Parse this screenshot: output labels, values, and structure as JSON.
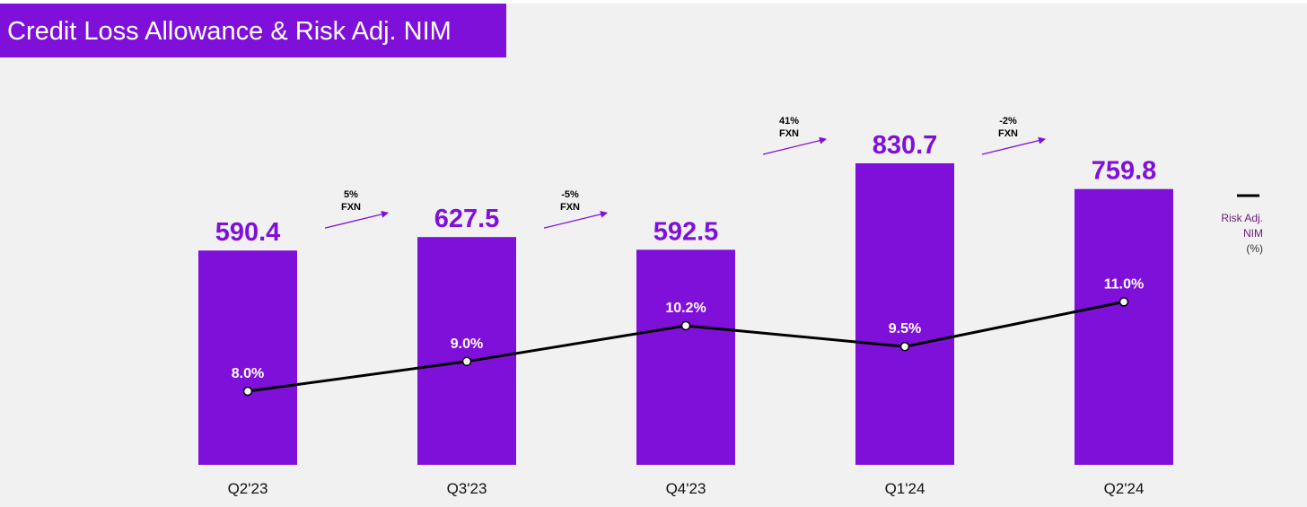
{
  "title": "Credit Loss Allowance & Risk Adj. NIM",
  "colors": {
    "bar": "#7f10d9",
    "line": "#000000",
    "title_bg": "#7f10d9",
    "background": "#f1f1f1"
  },
  "chart_data": {
    "type": "bar",
    "categories": [
      "Q2'23",
      "Q3'23",
      "Q4'23",
      "Q1'24",
      "Q2'24"
    ],
    "series": [
      {
        "values": [
          590.4,
          627.5,
          592.5,
          830.7,
          759.8
        ]
      },
      {
        "name": "Risk Adj. NIM (%)",
        "type": "line",
        "values": [
          8.0,
          9.0,
          10.2,
          9.5,
          11.0
        ]
      }
    ],
    "bar_labels": [
      "590.4",
      "627.5",
      "592.5",
      "830.7",
      "759.8"
    ],
    "line_labels": [
      "8.0%",
      "9.0%",
      "10.2%",
      "9.5%",
      "11.0%"
    ],
    "growth_annotations": [
      {
        "pct": "5%",
        "unit": "FXN"
      },
      {
        "pct": "-5%",
        "unit": "FXN"
      },
      {
        "pct": "41%",
        "unit": "FXN"
      },
      {
        "pct": "-2%",
        "unit": "FXN"
      }
    ],
    "legend": {
      "lines": [
        "Risk Adj.",
        "NIM",
        "(%)"
      ],
      "placement": "right"
    },
    "ylim": [
      0,
      1000
    ],
    "y2lim": [
      0,
      20
    ],
    "grid": false
  }
}
